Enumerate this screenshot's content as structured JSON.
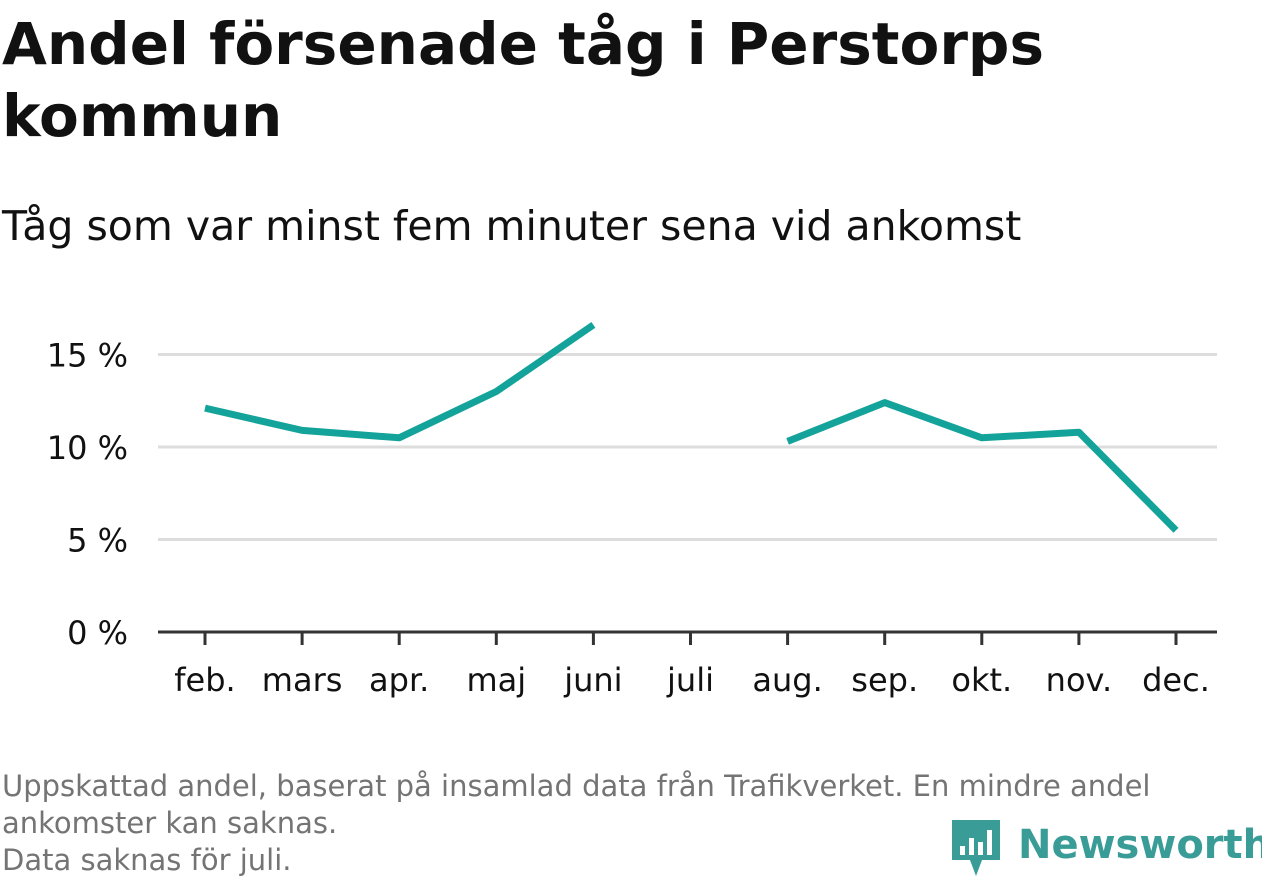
{
  "title": "Andel försenade tåg i Perstorps kommun",
  "subtitle": "Tåg som var minst fem minuter sena vid ankomst",
  "footer": {
    "note_line1": "Uppskattad andel, baserat på insamlad data från Trafikverket. En mindre andel",
    "note_line2": "ankomster kan saknas.",
    "note_line3": "Data saknas för juli."
  },
  "brand": {
    "name": "Newsworthy",
    "color": "#3a9c97",
    "icon": "bar-chart-pin-icon"
  },
  "colors": {
    "line": "#14a39a",
    "grid": "#dddddd",
    "axis": "#333333",
    "text": "#111111",
    "footer": "#747474"
  },
  "chart_data": {
    "type": "line",
    "categories": [
      "feb.",
      "mars",
      "apr.",
      "maj",
      "juni",
      "juli",
      "aug.",
      "sep.",
      "okt.",
      "nov.",
      "dec."
    ],
    "series": [
      {
        "values": [
          12.1,
          10.9,
          10.5,
          13.0,
          16.6,
          null,
          10.3,
          12.4,
          10.5,
          10.8,
          5.5
        ]
      }
    ],
    "y_ticks": [
      0,
      5,
      10,
      15
    ],
    "y_tick_labels": [
      "0 %",
      "5 %",
      "10 %",
      "15 %"
    ],
    "ylim": [
      0,
      17.5
    ],
    "grid": true,
    "xlabel": "",
    "ylabel": ""
  }
}
